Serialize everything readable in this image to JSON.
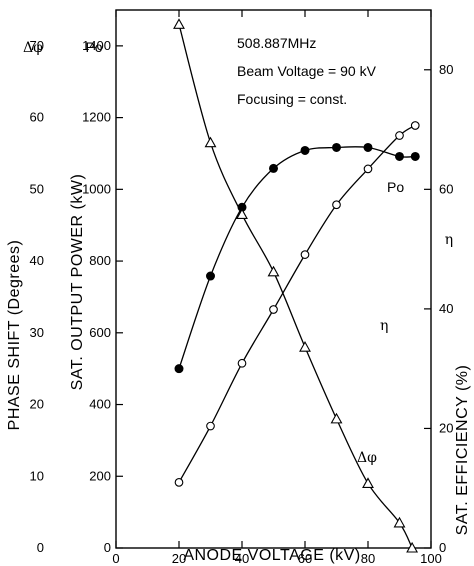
{
  "chart_data": {
    "type": "line",
    "annotations": {
      "frequency": "508.887MHz",
      "beam_voltage": "Beam Voltage = 90 kV",
      "focusing": "Focusing = const."
    },
    "xlabel": "ANODE VOLTAGE  (kV)",
    "xlim": [
      0,
      100
    ],
    "x_ticks": [
      "0",
      "20",
      "40",
      "60",
      "80",
      "100"
    ],
    "axes": {
      "phase": {
        "label": "PHASE  SHIFT  (Degrees)",
        "symbol": "Δφ",
        "lim": [
          0,
          75
        ],
        "ticks": [
          "0",
          "10",
          "20",
          "30",
          "40",
          "50",
          "60",
          "70"
        ]
      },
      "power": {
        "label": "SAT.  OUTPUT  POWER  (kW)",
        "symbol": "Po",
        "lim": [
          0,
          1500
        ],
        "ticks": [
          "0",
          "200",
          "400",
          "600",
          "800",
          "1000",
          "1200",
          "1400"
        ]
      },
      "efficiency": {
        "label": "SAT.  EFFICIENCY  (%)",
        "symbol": "η",
        "lim": [
          0,
          90
        ],
        "ticks": [
          "0",
          "20",
          "40",
          "60",
          "80"
        ]
      }
    },
    "series": [
      {
        "name": "Po",
        "axis": "power",
        "marker": "open-circle",
        "x": [
          20,
          30,
          40,
          50,
          60,
          70,
          80,
          90,
          95
        ],
        "y": [
          183,
          340,
          515,
          665,
          818,
          957,
          1057,
          1150,
          1178
        ]
      },
      {
        "name": "η",
        "axis": "efficiency",
        "marker": "filled-circle",
        "x": [
          20,
          30,
          40,
          50,
          60,
          70,
          80,
          90,
          95
        ],
        "y": [
          30,
          45.5,
          57,
          63.5,
          66.5,
          67,
          67,
          65.5,
          65.5
        ]
      },
      {
        "name": "Δφ",
        "axis": "phase",
        "marker": "open-triangle",
        "x": [
          20,
          30,
          40,
          50,
          60,
          70,
          80,
          90,
          94
        ],
        "y": [
          73,
          56.5,
          46.5,
          38.5,
          28,
          18,
          9,
          3.5,
          0
        ]
      }
    ]
  }
}
